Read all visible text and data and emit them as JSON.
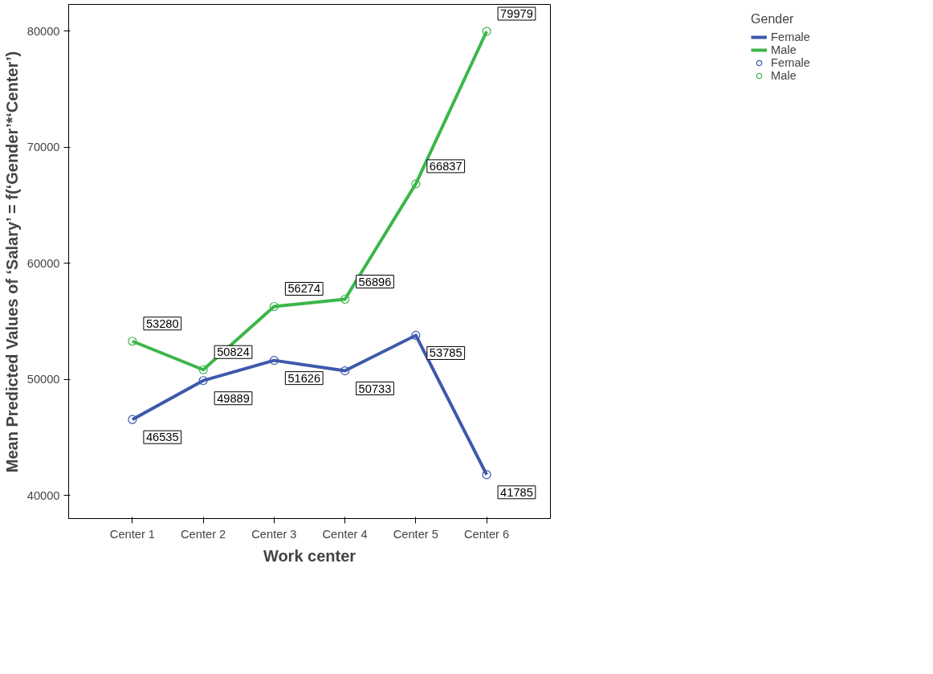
{
  "chart_data": {
    "type": "line",
    "xlabel": "Work center",
    "ylabel": "Mean Predicted Values of ‘Salary’ = f(‘Gender’*‘Center’)",
    "legend_title": "Gender",
    "categories": [
      "Center 1",
      "Center 2",
      "Center 3",
      "Center 4",
      "Center 5",
      "Center 6"
    ],
    "series": [
      {
        "name": "Female",
        "color": "#3e58ac",
        "values": [
          46535,
          49889,
          51626,
          50733,
          53785,
          41785
        ]
      },
      {
        "name": "Male",
        "color": "#3cb64a",
        "values": [
          53280,
          50824,
          56274,
          56896,
          66837,
          79979
        ]
      }
    ],
    "ylim": [
      38000,
      82300
    ],
    "yticks": [
      40000,
      50000,
      60000,
      70000,
      80000
    ],
    "grid": false,
    "legend": "right",
    "marker": "circle",
    "line_style": "solid",
    "data_labels": true
  }
}
